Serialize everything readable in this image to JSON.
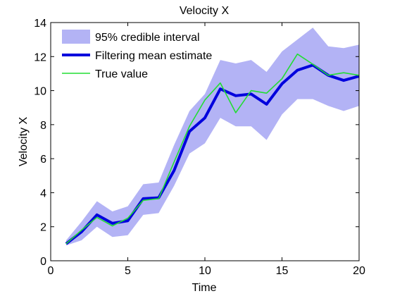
{
  "chart_data": {
    "type": "line",
    "title": "Velocity X",
    "xlabel": "Time",
    "ylabel": "Velocity X",
    "xlim": [
      0,
      20
    ],
    "ylim": [
      0,
      14
    ],
    "xticks": [
      0,
      5,
      10,
      15,
      20
    ],
    "yticks": [
      0,
      2,
      4,
      6,
      8,
      10,
      12,
      14
    ],
    "grid": false,
    "legend_position": "top-left",
    "x": [
      1,
      2,
      3,
      4,
      5,
      6,
      7,
      8,
      9,
      10,
      11,
      12,
      13,
      14,
      15,
      16,
      17,
      18,
      19,
      20
    ],
    "series": [
      {
        "name": "95% credible interval",
        "kind": "band",
        "color": "#b3b3f5",
        "lower": [
          0.9,
          1.2,
          2.0,
          1.4,
          1.5,
          2.7,
          2.8,
          4.4,
          6.3,
          6.9,
          8.4,
          7.9,
          7.9,
          7.1,
          8.6,
          9.5,
          9.5,
          9.1,
          8.8,
          9.1
        ],
        "upper": [
          1.2,
          2.3,
          3.5,
          2.9,
          3.2,
          4.5,
          4.6,
          6.8,
          8.8,
          9.8,
          11.8,
          11.6,
          11.8,
          11.1,
          12.3,
          13.0,
          13.7,
          12.6,
          12.5,
          12.7
        ]
      },
      {
        "name": "Filtering mean estimate",
        "kind": "line",
        "color": "#0000dd",
        "values": [
          1.0,
          1.7,
          2.7,
          2.2,
          2.35,
          3.65,
          3.7,
          5.3,
          7.6,
          8.4,
          10.1,
          9.7,
          9.8,
          9.2,
          10.4,
          11.2,
          11.5,
          10.9,
          10.6,
          10.85
        ]
      },
      {
        "name": "True value",
        "kind": "line",
        "color": "#22dd33",
        "values": [
          1.0,
          1.8,
          2.55,
          2.05,
          2.5,
          3.55,
          3.65,
          5.8,
          7.9,
          9.45,
          10.45,
          8.7,
          10.0,
          9.85,
          10.7,
          12.15,
          11.55,
          10.9,
          11.05,
          10.9
        ]
      }
    ]
  }
}
